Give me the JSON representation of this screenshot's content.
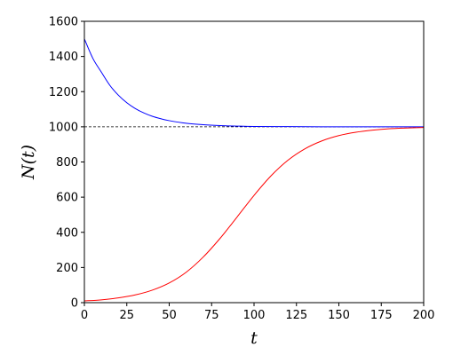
{
  "chart_data": {
    "type": "line",
    "title": "",
    "xlabel": "t",
    "ylabel": "N(t)",
    "xlim": [
      0,
      200
    ],
    "ylim": [
      0,
      1600
    ],
    "xticks": [
      0,
      25,
      50,
      75,
      100,
      125,
      150,
      175,
      200
    ],
    "yticks": [
      0,
      200,
      400,
      600,
      800,
      1000,
      1200,
      1400,
      1600
    ],
    "grid": false,
    "legend": "none",
    "reference_line": {
      "y": 1000,
      "style": "dashed",
      "color": "#000000"
    },
    "series": [
      {
        "color": "#0000ff",
        "x": [
          0,
          5,
          10,
          15,
          20,
          25,
          30,
          35,
          40,
          45,
          50,
          60,
          70,
          80,
          90,
          100,
          120,
          140,
          160,
          180,
          200
        ],
        "y": [
          1500,
          1389,
          1311,
          1236,
          1180,
          1137,
          1104,
          1079,
          1060,
          1046,
          1035,
          1020,
          1012,
          1007,
          1004,
          1002,
          1001,
          1000,
          1000,
          1000,
          1000
        ]
      },
      {
        "color": "#ff0000",
        "x": [
          0,
          10,
          20,
          30,
          40,
          50,
          60,
          70,
          80,
          90,
          100,
          110,
          120,
          130,
          140,
          150,
          160,
          170,
          180,
          190,
          200
        ],
        "y": [
          10,
          16,
          27,
          44,
          71,
          112,
          173,
          259,
          366,
          487,
          610,
          721,
          810,
          875,
          920,
          950,
          969,
          981,
          989,
          993,
          996
        ]
      }
    ]
  }
}
